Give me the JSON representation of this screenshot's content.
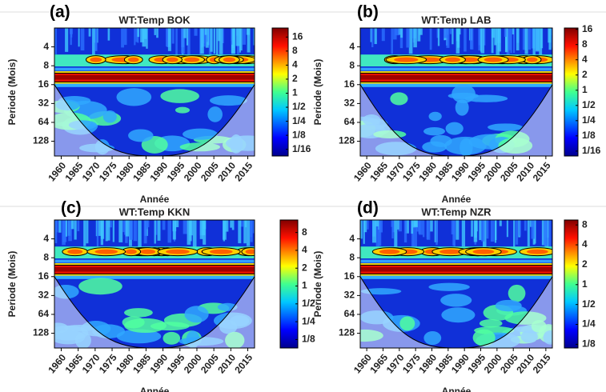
{
  "chart_data": [
    {
      "type": "heatmap",
      "panel_label": "(a)",
      "title": "WT:Temp BOK",
      "xlabel": "Année",
      "ylabel": "Periode (Mois)",
      "xlim": [
        1958,
        2017
      ],
      "xticks": [
        1960,
        1965,
        1970,
        1975,
        1980,
        1985,
        1990,
        1995,
        2000,
        2005,
        2010,
        2015
      ],
      "ylim": [
        2,
        220
      ],
      "yticks": [
        4,
        8,
        16,
        32,
        64,
        128
      ],
      "log_y": true,
      "colorbar_lim": [
        0.045,
        25
      ],
      "colorbar_ticks": [
        16,
        8,
        4,
        2,
        1,
        {
          "value": 0.5,
          "label": "1/2"
        },
        {
          "value": 0.25,
          "label": "1/4"
        },
        {
          "value": 0.125,
          "label": "1/8"
        },
        {
          "value": 0.0625,
          "label": "1/16"
        }
      ]
    },
    {
      "type": "heatmap",
      "panel_label": "(b)",
      "title": "WT:Temp LAB",
      "xlabel": "Année",
      "ylabel": "Periode (Mois)",
      "xlim": [
        1958,
        2017
      ],
      "xticks": [
        1960,
        1965,
        1970,
        1975,
        1980,
        1985,
        1990,
        1995,
        2000,
        2005,
        2010,
        2015
      ],
      "ylim": [
        2,
        220
      ],
      "yticks": [
        4,
        8,
        16,
        32,
        64,
        128
      ],
      "log_y": true,
      "colorbar_lim": [
        0.05,
        17
      ],
      "colorbar_ticks": [
        16,
        8,
        4,
        2,
        1,
        {
          "value": 0.5,
          "label": "1/2"
        },
        {
          "value": 0.25,
          "label": "1/4"
        },
        {
          "value": 0.125,
          "label": "1/8"
        },
        {
          "value": 0.0625,
          "label": "1/16"
        }
      ]
    },
    {
      "type": "heatmap",
      "panel_label": "(c)",
      "title": "WT:Temp KKN",
      "xlabel": "Année",
      "ylabel": "Periode (Mois)",
      "xlim": [
        1958,
        2017
      ],
      "xticks": [
        1960,
        1965,
        1970,
        1975,
        1980,
        1985,
        1990,
        1995,
        2000,
        2005,
        2010,
        2015
      ],
      "ylim": [
        2,
        220
      ],
      "yticks": [
        4,
        8,
        16,
        32,
        64,
        128
      ],
      "log_y": true,
      "colorbar_lim": [
        0.09,
        13
      ],
      "colorbar_ticks": [
        8,
        4,
        2,
        1,
        {
          "value": 0.5,
          "label": "1/2"
        },
        {
          "value": 0.25,
          "label": "1/4"
        },
        {
          "value": 0.125,
          "label": "1/8"
        }
      ]
    },
    {
      "type": "heatmap",
      "panel_label": "(d)",
      "title": "WT:Temp NZR",
      "xlabel": "Année",
      "ylabel": "Periode (Mois)",
      "xlim": [
        1958,
        2017
      ],
      "xticks": [
        1960,
        1965,
        1970,
        1975,
        1980,
        1985,
        1990,
        1995,
        2000,
        2005,
        2010,
        2015
      ],
      "ylim": [
        2,
        220
      ],
      "yticks": [
        4,
        8,
        16,
        32,
        64,
        128
      ],
      "log_y": true,
      "colorbar_lim": [
        0.11,
        9.5
      ],
      "colorbar_ticks": [
        8,
        4,
        2,
        1,
        {
          "value": 0.5,
          "label": "1/2"
        },
        {
          "value": 0.25,
          "label": "1/4"
        },
        {
          "value": 0.125,
          "label": "1/8"
        }
      ]
    }
  ]
}
